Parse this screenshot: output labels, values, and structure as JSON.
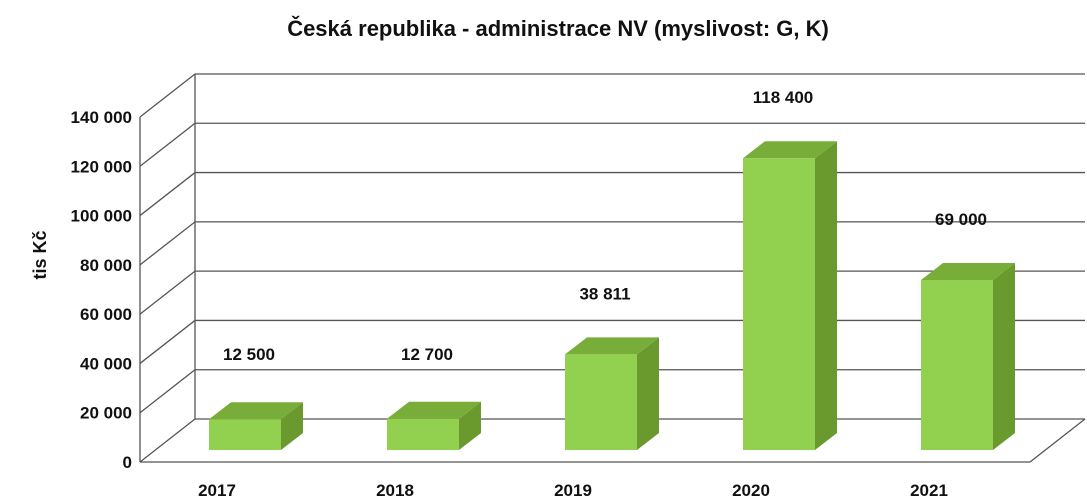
{
  "chart_data": {
    "type": "bar",
    "title": "Česká republika - administrace NV (myslivost: G, K)",
    "xlabel": "",
    "ylabel": "tis Kč",
    "categories": [
      "2017",
      "2018",
      "2019",
      "2020",
      "2021"
    ],
    "values": [
      12500,
      12700,
      38811,
      118400,
      69000
    ],
    "value_labels": [
      "12 500",
      "12 700",
      "38 811",
      "118 400",
      "69 000"
    ],
    "ylim": [
      0,
      140000
    ],
    "y_ticks": [
      0,
      20000,
      40000,
      60000,
      80000,
      100000,
      120000,
      140000
    ],
    "y_tick_labels": [
      "0",
      "20 000",
      "40 000",
      "60 000",
      "80 000",
      "100 000",
      "120 000",
      "140 000"
    ],
    "grid": true,
    "legend": "none",
    "bar_color": "#92d050",
    "bar_side_color": "#6a9a2e",
    "bar_top_color": "#79ad3a"
  }
}
